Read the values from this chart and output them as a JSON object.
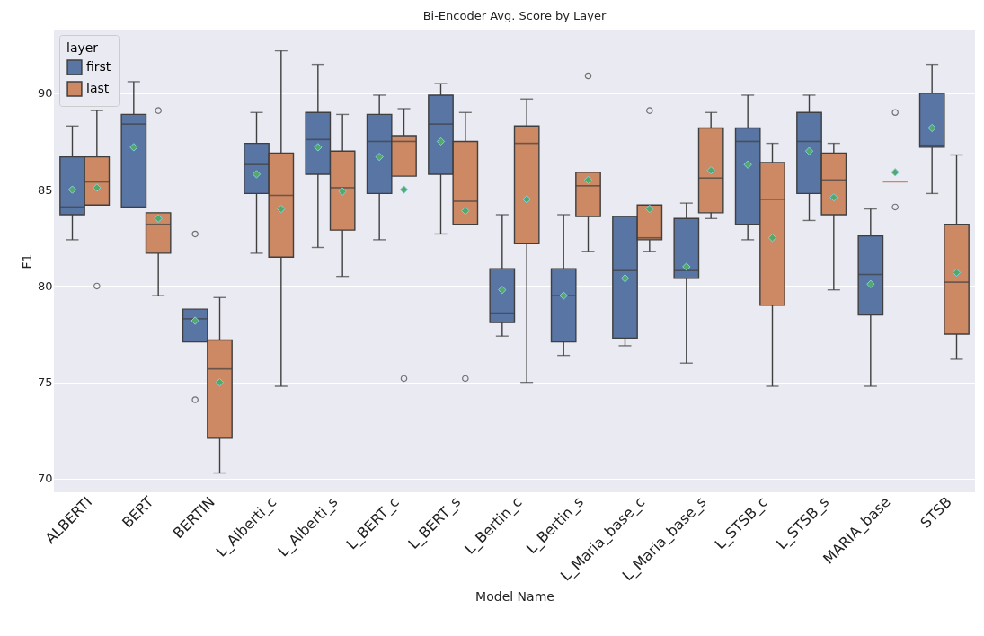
{
  "chart_data": {
    "type": "box",
    "title": "Bi-Encoder Avg. Score by Layer",
    "xlabel": "Model Name",
    "ylabel": "F1",
    "legend_title": "layer",
    "legend": "top left",
    "grid": "y",
    "marker": "diamond",
    "categories": [
      "ALBERTI",
      "BERT",
      "BERTIN",
      "L_Alberti_c",
      "L_Alberti_s",
      "L_BERT_c",
      "L_BERT_s",
      "L_Bertin_c",
      "L_Bertin_s",
      "L_Maria_base_c",
      "L_Maria_base_s",
      "L_STSB_c",
      "L_STSB_s",
      "MARIA_base",
      "STSB"
    ],
    "ylim": [
      69.3,
      93.3
    ],
    "yticks": [
      70,
      75,
      80,
      85,
      90
    ],
    "series": [
      {
        "name": "first",
        "color": "#5875a4",
        "boxes": [
          {
            "low": 82.4,
            "q1": 83.7,
            "median": 84.1,
            "q3": 86.7,
            "high": 88.3,
            "mean": 85.0
          },
          {
            "low": 84.1,
            "q1": 84.1,
            "median": 88.4,
            "q3": 88.9,
            "high": 90.6,
            "mean": 87.2
          },
          {
            "low": 77.1,
            "q1": 77.1,
            "median": 78.3,
            "q3": 78.8,
            "high": 78.8,
            "mean": 78.2,
            "outliers": [
              82.7,
              74.1
            ]
          },
          {
            "low": 81.7,
            "q1": 84.8,
            "median": 86.3,
            "q3": 87.4,
            "high": 89.0,
            "mean": 85.8
          },
          {
            "low": 82.0,
            "q1": 85.8,
            "median": 87.6,
            "q3": 89.0,
            "high": 91.5,
            "mean": 87.2
          },
          {
            "low": 82.4,
            "q1": 84.8,
            "median": 87.5,
            "q3": 88.9,
            "high": 89.9,
            "mean": 86.7
          },
          {
            "low": 82.7,
            "q1": 85.8,
            "median": 88.4,
            "q3": 89.9,
            "high": 90.5,
            "mean": 87.5
          },
          {
            "low": 77.4,
            "q1": 78.1,
            "median": 78.6,
            "q3": 80.9,
            "high": 83.7,
            "mean": 79.8
          },
          {
            "low": 76.4,
            "q1": 77.1,
            "median": 79.5,
            "q3": 80.9,
            "high": 83.7,
            "mean": 79.5
          },
          {
            "low": 76.9,
            "q1": 77.3,
            "median": 80.8,
            "q3": 83.6,
            "high": 83.6,
            "mean": 80.4
          },
          {
            "low": 76.0,
            "q1": 80.4,
            "median": 80.8,
            "q3": 83.5,
            "high": 84.3,
            "mean": 81.0
          },
          {
            "low": 82.4,
            "q1": 83.2,
            "median": 87.5,
            "q3": 88.2,
            "high": 89.9,
            "mean": 86.3
          },
          {
            "low": 83.4,
            "q1": 84.8,
            "median": 87.5,
            "q3": 89.0,
            "high": 89.9,
            "mean": 87.0
          },
          {
            "low": 74.8,
            "q1": 78.5,
            "median": 80.6,
            "q3": 82.6,
            "high": 84.0,
            "mean": 80.1
          },
          {
            "low": 84.8,
            "q1": 87.2,
            "median": 87.3,
            "q3": 90.0,
            "high": 91.5,
            "mean": 88.2
          }
        ]
      },
      {
        "name": "last",
        "color": "#cc8963",
        "boxes": [
          {
            "low": 84.2,
            "q1": 84.2,
            "median": 85.4,
            "q3": 86.7,
            "high": 89.1,
            "mean": 85.1,
            "outliers": [
              80.0
            ]
          },
          {
            "low": 79.5,
            "q1": 81.7,
            "median": 83.2,
            "q3": 83.8,
            "high": 83.8,
            "mean": 83.5,
            "outliers": [
              89.1
            ]
          },
          {
            "low": 70.3,
            "q1": 72.1,
            "median": 75.7,
            "q3": 77.2,
            "high": 79.4,
            "mean": 75.0
          },
          {
            "low": 74.8,
            "q1": 81.5,
            "median": 84.7,
            "q3": 86.9,
            "high": 92.2,
            "mean": 84.0
          },
          {
            "low": 80.5,
            "q1": 82.9,
            "median": 85.1,
            "q3": 87.0,
            "high": 88.9,
            "mean": 84.9
          },
          {
            "low": 85.7,
            "q1": 85.7,
            "median": 87.5,
            "q3": 87.8,
            "high": 89.2,
            "mean": 85.0,
            "outliers": [
              75.2
            ]
          },
          {
            "low": 83.2,
            "q1": 83.2,
            "median": 84.4,
            "q3": 87.5,
            "high": 89.0,
            "mean": 83.9,
            "outliers": [
              75.2
            ]
          },
          {
            "low": 75.0,
            "q1": 82.2,
            "median": 87.4,
            "q3": 88.3,
            "high": 89.7,
            "mean": 84.5
          },
          {
            "low": 81.8,
            "q1": 83.6,
            "median": 85.2,
            "q3": 85.9,
            "high": 85.9,
            "mean": 85.5,
            "outliers": [
              90.9
            ]
          },
          {
            "low": 81.8,
            "q1": 82.4,
            "median": 82.5,
            "q3": 84.2,
            "high": 84.2,
            "mean": 84.0,
            "outliers": [
              89.1
            ]
          },
          {
            "low": 83.5,
            "q1": 83.8,
            "median": 85.6,
            "q3": 88.2,
            "high": 89.0,
            "mean": 86.0
          },
          {
            "low": 74.8,
            "q1": 79.0,
            "median": 84.5,
            "q3": 86.4,
            "high": 87.4,
            "mean": 82.5
          },
          {
            "low": 79.8,
            "q1": 83.7,
            "median": 85.5,
            "q3": 86.9,
            "high": 87.4,
            "mean": 84.6
          },
          {
            "low": 85.4,
            "q1": 85.4,
            "median": 85.4,
            "q3": 85.4,
            "high": 85.4,
            "mean": 85.9,
            "outliers": [
              89.0,
              84.1
            ]
          },
          {
            "low": 76.2,
            "q1": 77.5,
            "median": 80.2,
            "q3": 83.2,
            "high": 86.8,
            "mean": 80.7
          }
        ]
      }
    ]
  }
}
